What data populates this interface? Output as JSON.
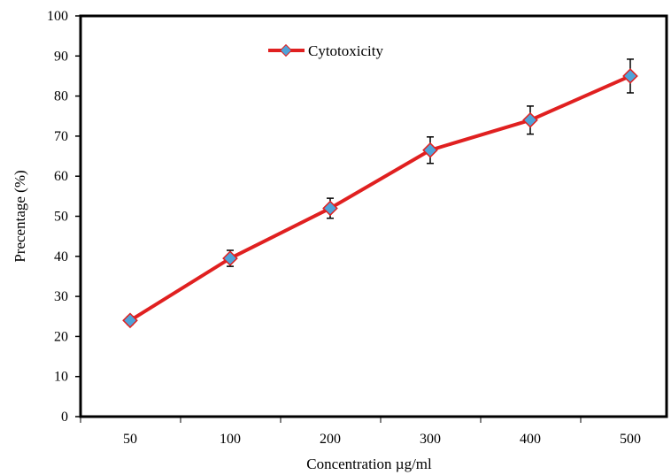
{
  "chart_data": {
    "type": "line",
    "categories": [
      "50",
      "100",
      "200",
      "300",
      "400",
      "500"
    ],
    "series": [
      {
        "name": "Cytotoxicity",
        "values": [
          24,
          39.5,
          52,
          66.5,
          74,
          85
        ],
        "errors": [
          1.0,
          2.0,
          2.5,
          3.3,
          3.5,
          4.2
        ],
        "line_color": "#e02020",
        "marker_color": "#4fa3d9"
      }
    ],
    "xlabel": "Concentration µg/ml",
    "ylabel": "Precentage (%)",
    "ylim": [
      0,
      100
    ],
    "yticks": [
      0,
      10,
      20,
      30,
      40,
      50,
      60,
      70,
      80,
      90,
      100
    ],
    "grid": false,
    "legend_position": "top-center"
  }
}
